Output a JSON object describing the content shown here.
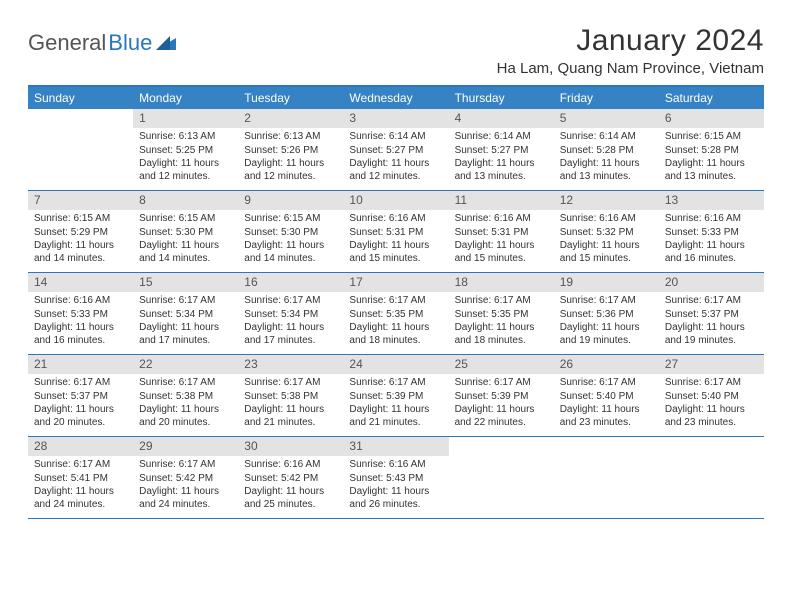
{
  "brand": {
    "part1": "General",
    "part2": "Blue"
  },
  "title": "January 2024",
  "location": "Ha Lam, Quang Nam Province, Vietnam",
  "colors": {
    "header_bg": "#3582c4",
    "border": "#2a77bd",
    "daynum_bg": "#e3e3e3",
    "text": "#333333",
    "brand_blue": "#2a77bd"
  },
  "weekdays": [
    "Sunday",
    "Monday",
    "Tuesday",
    "Wednesday",
    "Thursday",
    "Friday",
    "Saturday"
  ],
  "weeks": [
    [
      {
        "n": "",
        "sr": "",
        "ss": "",
        "dl": ""
      },
      {
        "n": "1",
        "sr": "Sunrise: 6:13 AM",
        "ss": "Sunset: 5:25 PM",
        "dl": "Daylight: 11 hours and 12 minutes."
      },
      {
        "n": "2",
        "sr": "Sunrise: 6:13 AM",
        "ss": "Sunset: 5:26 PM",
        "dl": "Daylight: 11 hours and 12 minutes."
      },
      {
        "n": "3",
        "sr": "Sunrise: 6:14 AM",
        "ss": "Sunset: 5:27 PM",
        "dl": "Daylight: 11 hours and 12 minutes."
      },
      {
        "n": "4",
        "sr": "Sunrise: 6:14 AM",
        "ss": "Sunset: 5:27 PM",
        "dl": "Daylight: 11 hours and 13 minutes."
      },
      {
        "n": "5",
        "sr": "Sunrise: 6:14 AM",
        "ss": "Sunset: 5:28 PM",
        "dl": "Daylight: 11 hours and 13 minutes."
      },
      {
        "n": "6",
        "sr": "Sunrise: 6:15 AM",
        "ss": "Sunset: 5:28 PM",
        "dl": "Daylight: 11 hours and 13 minutes."
      }
    ],
    [
      {
        "n": "7",
        "sr": "Sunrise: 6:15 AM",
        "ss": "Sunset: 5:29 PM",
        "dl": "Daylight: 11 hours and 14 minutes."
      },
      {
        "n": "8",
        "sr": "Sunrise: 6:15 AM",
        "ss": "Sunset: 5:30 PM",
        "dl": "Daylight: 11 hours and 14 minutes."
      },
      {
        "n": "9",
        "sr": "Sunrise: 6:15 AM",
        "ss": "Sunset: 5:30 PM",
        "dl": "Daylight: 11 hours and 14 minutes."
      },
      {
        "n": "10",
        "sr": "Sunrise: 6:16 AM",
        "ss": "Sunset: 5:31 PM",
        "dl": "Daylight: 11 hours and 15 minutes."
      },
      {
        "n": "11",
        "sr": "Sunrise: 6:16 AM",
        "ss": "Sunset: 5:31 PM",
        "dl": "Daylight: 11 hours and 15 minutes."
      },
      {
        "n": "12",
        "sr": "Sunrise: 6:16 AM",
        "ss": "Sunset: 5:32 PM",
        "dl": "Daylight: 11 hours and 15 minutes."
      },
      {
        "n": "13",
        "sr": "Sunrise: 6:16 AM",
        "ss": "Sunset: 5:33 PM",
        "dl": "Daylight: 11 hours and 16 minutes."
      }
    ],
    [
      {
        "n": "14",
        "sr": "Sunrise: 6:16 AM",
        "ss": "Sunset: 5:33 PM",
        "dl": "Daylight: 11 hours and 16 minutes."
      },
      {
        "n": "15",
        "sr": "Sunrise: 6:17 AM",
        "ss": "Sunset: 5:34 PM",
        "dl": "Daylight: 11 hours and 17 minutes."
      },
      {
        "n": "16",
        "sr": "Sunrise: 6:17 AM",
        "ss": "Sunset: 5:34 PM",
        "dl": "Daylight: 11 hours and 17 minutes."
      },
      {
        "n": "17",
        "sr": "Sunrise: 6:17 AM",
        "ss": "Sunset: 5:35 PM",
        "dl": "Daylight: 11 hours and 18 minutes."
      },
      {
        "n": "18",
        "sr": "Sunrise: 6:17 AM",
        "ss": "Sunset: 5:35 PM",
        "dl": "Daylight: 11 hours and 18 minutes."
      },
      {
        "n": "19",
        "sr": "Sunrise: 6:17 AM",
        "ss": "Sunset: 5:36 PM",
        "dl": "Daylight: 11 hours and 19 minutes."
      },
      {
        "n": "20",
        "sr": "Sunrise: 6:17 AM",
        "ss": "Sunset: 5:37 PM",
        "dl": "Daylight: 11 hours and 19 minutes."
      }
    ],
    [
      {
        "n": "21",
        "sr": "Sunrise: 6:17 AM",
        "ss": "Sunset: 5:37 PM",
        "dl": "Daylight: 11 hours and 20 minutes."
      },
      {
        "n": "22",
        "sr": "Sunrise: 6:17 AM",
        "ss": "Sunset: 5:38 PM",
        "dl": "Daylight: 11 hours and 20 minutes."
      },
      {
        "n": "23",
        "sr": "Sunrise: 6:17 AM",
        "ss": "Sunset: 5:38 PM",
        "dl": "Daylight: 11 hours and 21 minutes."
      },
      {
        "n": "24",
        "sr": "Sunrise: 6:17 AM",
        "ss": "Sunset: 5:39 PM",
        "dl": "Daylight: 11 hours and 21 minutes."
      },
      {
        "n": "25",
        "sr": "Sunrise: 6:17 AM",
        "ss": "Sunset: 5:39 PM",
        "dl": "Daylight: 11 hours and 22 minutes."
      },
      {
        "n": "26",
        "sr": "Sunrise: 6:17 AM",
        "ss": "Sunset: 5:40 PM",
        "dl": "Daylight: 11 hours and 23 minutes."
      },
      {
        "n": "27",
        "sr": "Sunrise: 6:17 AM",
        "ss": "Sunset: 5:40 PM",
        "dl": "Daylight: 11 hours and 23 minutes."
      }
    ],
    [
      {
        "n": "28",
        "sr": "Sunrise: 6:17 AM",
        "ss": "Sunset: 5:41 PM",
        "dl": "Daylight: 11 hours and 24 minutes."
      },
      {
        "n": "29",
        "sr": "Sunrise: 6:17 AM",
        "ss": "Sunset: 5:42 PM",
        "dl": "Daylight: 11 hours and 24 minutes."
      },
      {
        "n": "30",
        "sr": "Sunrise: 6:16 AM",
        "ss": "Sunset: 5:42 PM",
        "dl": "Daylight: 11 hours and 25 minutes."
      },
      {
        "n": "31",
        "sr": "Sunrise: 6:16 AM",
        "ss": "Sunset: 5:43 PM",
        "dl": "Daylight: 11 hours and 26 minutes."
      },
      {
        "n": "",
        "sr": "",
        "ss": "",
        "dl": ""
      },
      {
        "n": "",
        "sr": "",
        "ss": "",
        "dl": ""
      },
      {
        "n": "",
        "sr": "",
        "ss": "",
        "dl": ""
      }
    ]
  ]
}
